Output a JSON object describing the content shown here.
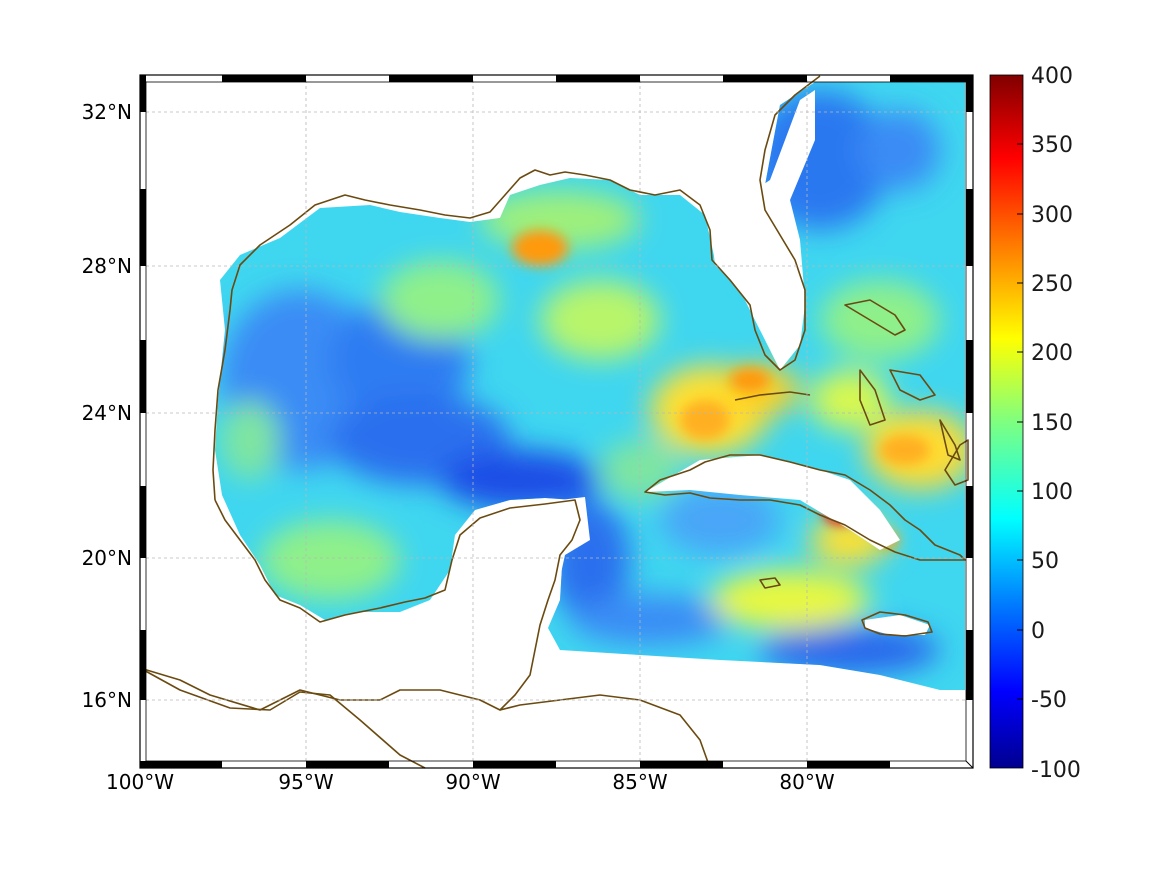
{
  "map": {
    "region": "Gulf of Mexico and Caribbean",
    "lon_range": [
      -100,
      -75
    ],
    "lat_range": [
      14.2,
      33
    ],
    "lon_ticks": [
      "100°W",
      "95°W",
      "90°W",
      "85°W",
      "80°W"
    ],
    "lat_ticks": [
      "32°N",
      "28°N",
      "24°N",
      "20°N",
      "16°N"
    ],
    "grid": true,
    "coastline_color": "#6b4a10",
    "colormap": "jet",
    "features": [
      "Gulf of Mexico",
      "Florida",
      "Yucatan Peninsula",
      "Cuba",
      "Jamaica",
      "Bahamas"
    ]
  },
  "colorbar": {
    "min": -100,
    "max": 400,
    "tick_labels": [
      "400",
      "350",
      "300",
      "250",
      "200",
      "150",
      "100",
      "50",
      "0",
      "-50",
      "-100"
    ],
    "colors": [
      "#00008f",
      "#0000ff",
      "#007fff",
      "#00ffff",
      "#7fff7f",
      "#ffff00",
      "#ff7f00",
      "#ff0000",
      "#800000"
    ]
  }
}
